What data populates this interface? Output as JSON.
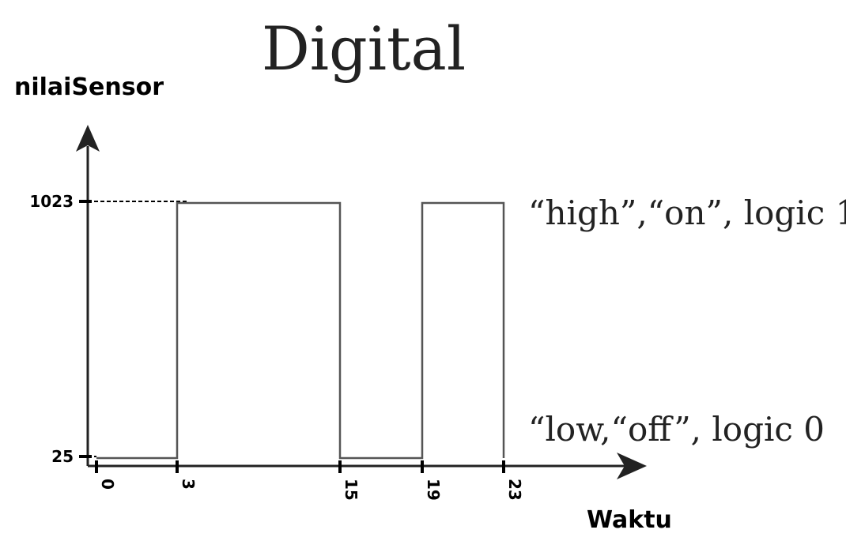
{
  "chart_data": {
    "type": "line",
    "title": "Digital",
    "xlabel": "Waktu",
    "ylabel": "nilaiSensor",
    "x": [
      0,
      3,
      3,
      15,
      15,
      19,
      19,
      23,
      23
    ],
    "y": [
      25,
      25,
      1023,
      1023,
      25,
      25,
      1023,
      1023,
      25
    ],
    "x_ticks": [
      "0",
      "3",
      "15",
      "19",
      "23"
    ],
    "y_ticks": [
      "25",
      "1023"
    ],
    "annotations": {
      "high": "“high”,“on”, logic 1",
      "low": "“low,“off”, logic 0"
    },
    "grid": false
  },
  "colors": {
    "axis": "#222222",
    "signal": "#555555"
  }
}
